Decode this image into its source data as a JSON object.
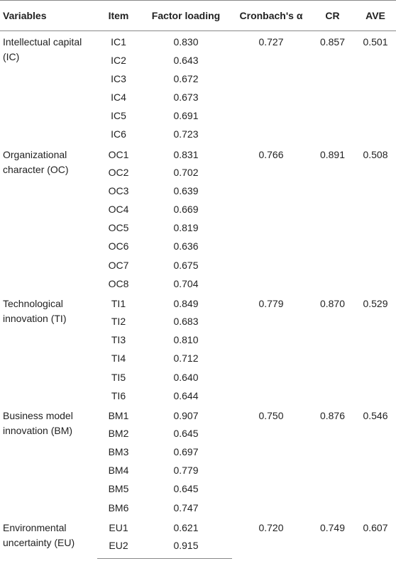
{
  "headers": [
    "Variables",
    "Item",
    "Factor loading",
    "Cronbach's α",
    "CR",
    "AVE"
  ],
  "groups": [
    {
      "variable_line1": "Intellectual capital",
      "variable_line2": "(IC)",
      "alpha": "0.727",
      "cr": "0.857",
      "ave": "0.501",
      "items": [
        {
          "item": "IC1",
          "loading": "0.830"
        },
        {
          "item": "IC2",
          "loading": "0.643"
        },
        {
          "item": "IC3",
          "loading": "0.672"
        },
        {
          "item": "IC4",
          "loading": "0.673"
        },
        {
          "item": "IC5",
          "loading": "0.691"
        },
        {
          "item": "IC6",
          "loading": "0.723"
        }
      ]
    },
    {
      "variable_line1": "Organizational",
      "variable_line2": "character (OC)",
      "alpha": "0.766",
      "cr": "0.891",
      "ave": "0.508",
      "items": [
        {
          "item": "OC1",
          "loading": "0.831"
        },
        {
          "item": "OC2",
          "loading": "0.702"
        },
        {
          "item": "OC3",
          "loading": "0.639"
        },
        {
          "item": "OC4",
          "loading": "0.669"
        },
        {
          "item": "OC5",
          "loading": "0.819"
        },
        {
          "item": "OC6",
          "loading": "0.636"
        },
        {
          "item": "OC7",
          "loading": "0.675"
        },
        {
          "item": "OC8",
          "loading": "0.704"
        }
      ]
    },
    {
      "variable_line1": "Technological",
      "variable_line2": "innovation (TI)",
      "alpha": "0.779",
      "cr": "0.870",
      "ave": "0.529",
      "items": [
        {
          "item": "TI1",
          "loading": "0.849"
        },
        {
          "item": "TI2",
          "loading": "0.683"
        },
        {
          "item": "TI3",
          "loading": "0.810"
        },
        {
          "item": "TI4",
          "loading": "0.712"
        },
        {
          "item": "TI5",
          "loading": "0.640"
        },
        {
          "item": "TI6",
          "loading": "0.644"
        }
      ]
    },
    {
      "variable_line1": "Business model",
      "variable_line2": "innovation (BM)",
      "alpha": "0.750",
      "cr": "0.876",
      "ave": "0.546",
      "items": [
        {
          "item": "BM1",
          "loading": "0.907"
        },
        {
          "item": "BM2",
          "loading": "0.645"
        },
        {
          "item": "BM3",
          "loading": "0.697"
        },
        {
          "item": "BM4",
          "loading": "0.779"
        },
        {
          "item": "BM5",
          "loading": "0.645"
        },
        {
          "item": "BM6",
          "loading": "0.747"
        }
      ]
    },
    {
      "variable_line1": "Environmental",
      "variable_line2": "uncertainty (EU)",
      "alpha": "0.720",
      "cr": "0.749",
      "ave": "0.607",
      "items": [
        {
          "item": "EU1",
          "loading": "0.621"
        },
        {
          "item": "EU2",
          "loading": "0.915"
        }
      ]
    }
  ]
}
